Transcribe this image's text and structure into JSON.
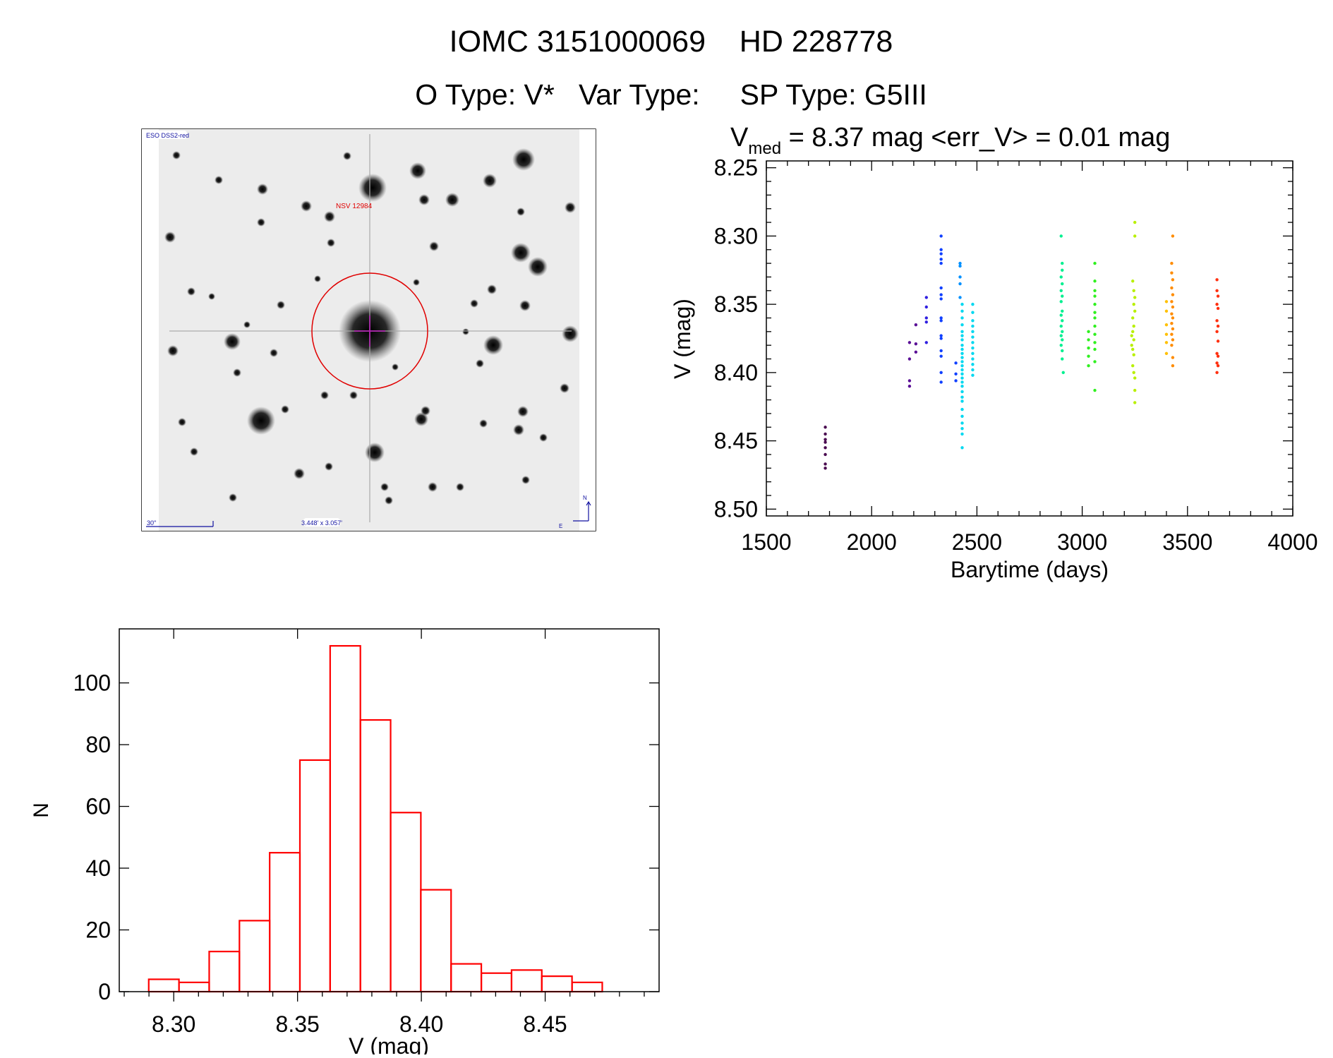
{
  "header": {
    "title": "IOMC 3151000069    HD 228778",
    "subtitle": "O Type: V*   Var Type:     SP Type: G5III"
  },
  "finder_image": {
    "survey_label": "ESO DSS2-red",
    "target_label": "NSV 12984",
    "scale_label": "30\"",
    "field_size_label": "3.448' x 3.057'",
    "north_label": "N",
    "east_label": "E",
    "colors": {
      "target": "#e00000",
      "labels": "#1010a0"
    }
  },
  "chart_data": [
    {
      "type": "scatter",
      "title_main": "V",
      "title_sub": "med",
      "title_rest": " = 8.37 mag <err_V> = 0.01 mag",
      "xlabel": "Barytime (days)",
      "ylabel": "V (mag)",
      "xlim": [
        1500,
        4000
      ],
      "ylim": [
        8.505,
        8.245
      ],
      "y_inverted": true,
      "xticks": [
        "1500",
        "2000",
        "2500",
        "3000",
        "3500",
        "4000"
      ],
      "yticks": [
        "8.25",
        "8.30",
        "8.35",
        "8.40",
        "8.45",
        "8.50"
      ],
      "grid": false,
      "series": [
        {
          "color": "#4a0a50",
          "points": [
            [
              1780,
              8.44
            ],
            [
              1780,
              8.445
            ],
            [
              1780,
              8.449
            ],
            [
              1780,
              8.451
            ],
            [
              1780,
              8.455
            ],
            [
              1780,
              8.46
            ],
            [
              1780,
              8.467
            ],
            [
              1780,
              8.47
            ]
          ]
        },
        {
          "color": "#5a1096",
          "points": [
            [
              2180,
              8.378
            ],
            [
              2180,
              8.39
            ],
            [
              2180,
              8.406
            ],
            [
              2180,
              8.41
            ],
            [
              2210,
              8.365
            ],
            [
              2210,
              8.379
            ],
            [
              2210,
              8.385
            ]
          ]
        },
        {
          "color": "#3020e0",
          "points": [
            [
              2260,
              8.345
            ],
            [
              2260,
              8.352
            ],
            [
              2260,
              8.36
            ],
            [
              2260,
              8.363
            ],
            [
              2260,
              8.378
            ]
          ]
        },
        {
          "color": "#1040ff",
          "points": [
            [
              2330,
              8.3
            ],
            [
              2330,
              8.31
            ],
            [
              2330,
              8.313
            ],
            [
              2330,
              8.317
            ],
            [
              2330,
              8.32
            ],
            [
              2330,
              8.338
            ],
            [
              2330,
              8.343
            ],
            [
              2330,
              8.346
            ],
            [
              2330,
              8.36
            ],
            [
              2330,
              8.362
            ],
            [
              2330,
              8.373
            ],
            [
              2330,
              8.375
            ],
            [
              2330,
              8.384
            ],
            [
              2330,
              8.388
            ],
            [
              2330,
              8.4
            ],
            [
              2330,
              8.407
            ],
            [
              2400,
              8.393
            ],
            [
              2400,
              8.401
            ],
            [
              2400,
              8.406
            ]
          ]
        },
        {
          "color": "#0090ff",
          "points": [
            [
              2420,
              8.32
            ],
            [
              2420,
              8.322
            ],
            [
              2420,
              8.33
            ],
            [
              2420,
              8.335
            ],
            [
              2420,
              8.345
            ]
          ]
        },
        {
          "color": "#00d8f0",
          "points": [
            [
              2430,
              8.35
            ],
            [
              2430,
              8.355
            ],
            [
              2430,
              8.36
            ],
            [
              2430,
              8.365
            ],
            [
              2430,
              8.37
            ],
            [
              2430,
              8.373
            ],
            [
              2430,
              8.376
            ],
            [
              2430,
              8.38
            ],
            [
              2430,
              8.383
            ],
            [
              2430,
              8.386
            ],
            [
              2430,
              8.389
            ],
            [
              2430,
              8.392
            ],
            [
              2430,
              8.395
            ],
            [
              2430,
              8.398
            ],
            [
              2430,
              8.401
            ],
            [
              2430,
              8.404
            ],
            [
              2430,
              8.407
            ],
            [
              2430,
              8.41
            ],
            [
              2430,
              8.414
            ],
            [
              2430,
              8.418
            ],
            [
              2430,
              8.421
            ],
            [
              2430,
              8.427
            ],
            [
              2430,
              8.432
            ],
            [
              2430,
              8.437
            ],
            [
              2430,
              8.441
            ],
            [
              2430,
              8.445
            ],
            [
              2430,
              8.455
            ],
            [
              2480,
              8.35
            ],
            [
              2480,
              8.356
            ],
            [
              2480,
              8.362
            ],
            [
              2480,
              8.366
            ],
            [
              2480,
              8.37
            ],
            [
              2480,
              8.374
            ],
            [
              2480,
              8.378
            ],
            [
              2480,
              8.382
            ],
            [
              2480,
              8.386
            ],
            [
              2480,
              8.39
            ],
            [
              2480,
              8.394
            ],
            [
              2480,
              8.398
            ],
            [
              2480,
              8.402
            ]
          ]
        },
        {
          "color": "#00f090",
          "points": [
            [
              2900,
              8.3
            ],
            [
              2905,
              8.32
            ],
            [
              2905,
              8.325
            ],
            [
              2900,
              8.33
            ],
            [
              2905,
              8.335
            ],
            [
              2900,
              8.34
            ],
            [
              2905,
              8.344
            ],
            [
              2900,
              8.348
            ],
            [
              2905,
              8.355
            ],
            [
              2900,
              8.358
            ],
            [
              2905,
              8.362
            ],
            [
              2900,
              8.366
            ],
            [
              2905,
              8.37
            ],
            [
              2900,
              8.373
            ],
            [
              2905,
              8.376
            ],
            [
              2900,
              8.38
            ],
            [
              2905,
              8.384
            ],
            [
              2905,
              8.39
            ],
            [
              2910,
              8.4
            ]
          ]
        },
        {
          "color": "#30f020",
          "points": [
            [
              3030,
              8.37
            ],
            [
              3030,
              8.376
            ],
            [
              3030,
              8.382
            ],
            [
              3030,
              8.388
            ],
            [
              3030,
              8.395
            ],
            [
              3060,
              8.32
            ],
            [
              3060,
              8.333
            ],
            [
              3060,
              8.34
            ],
            [
              3060,
              8.344
            ],
            [
              3060,
              8.35
            ],
            [
              3060,
              8.356
            ],
            [
              3060,
              8.36
            ],
            [
              3060,
              8.366
            ],
            [
              3060,
              8.372
            ],
            [
              3060,
              8.378
            ],
            [
              3060,
              8.383
            ],
            [
              3060,
              8.392
            ],
            [
              3060,
              8.413
            ]
          ]
        },
        {
          "color": "#b8f000",
          "points": [
            [
              3250,
              8.29
            ],
            [
              3250,
              8.3
            ],
            [
              3240,
              8.333
            ],
            [
              3245,
              8.34
            ],
            [
              3250,
              8.345
            ],
            [
              3245,
              8.35
            ],
            [
              3250,
              8.355
            ],
            [
              3240,
              8.36
            ],
            [
              3245,
              8.366
            ],
            [
              3240,
              8.37
            ],
            [
              3235,
              8.373
            ],
            [
              3245,
              8.376
            ],
            [
              3235,
              8.38
            ],
            [
              3240,
              8.383
            ],
            [
              3245,
              8.387
            ],
            [
              3240,
              8.395
            ],
            [
              3245,
              8.4
            ],
            [
              3250,
              8.404
            ],
            [
              3250,
              8.413
            ],
            [
              3250,
              8.422
            ]
          ]
        },
        {
          "color": "#ffc000",
          "points": [
            [
              3400,
              8.348
            ],
            [
              3400,
              8.355
            ],
            [
              3400,
              8.365
            ],
            [
              3400,
              8.372
            ],
            [
              3400,
              8.378
            ],
            [
              3400,
              8.386
            ]
          ]
        },
        {
          "color": "#ff8c00",
          "points": [
            [
              3430,
              8.3
            ],
            [
              3425,
              8.32
            ],
            [
              3425,
              8.327
            ],
            [
              3430,
              8.332
            ],
            [
              3425,
              8.338
            ],
            [
              3430,
              8.343
            ],
            [
              3425,
              8.348
            ],
            [
              3430,
              8.352
            ],
            [
              3425,
              8.357
            ],
            [
              3430,
              8.36
            ],
            [
              3425,
              8.364
            ],
            [
              3430,
              8.368
            ],
            [
              3425,
              8.372
            ],
            [
              3430,
              8.376
            ],
            [
              3425,
              8.38
            ],
            [
              3430,
              8.389
            ],
            [
              3430,
              8.395
            ]
          ]
        },
        {
          "color": "#ff3010",
          "points": [
            [
              3640,
              8.332
            ],
            [
              3640,
              8.34
            ],
            [
              3645,
              8.344
            ],
            [
              3640,
              8.35
            ],
            [
              3645,
              8.353
            ],
            [
              3640,
              8.362
            ],
            [
              3645,
              8.366
            ],
            [
              3640,
              8.37
            ],
            [
              3645,
              8.377
            ],
            [
              3640,
              8.386
            ],
            [
              3645,
              8.388
            ],
            [
              3640,
              8.393
            ],
            [
              3645,
              8.395
            ],
            [
              3640,
              8.4
            ]
          ]
        }
      ]
    },
    {
      "type": "bar",
      "histogram": true,
      "xlabel": "V (mag)",
      "ylabel": "N",
      "xlim": [
        8.278,
        8.496
      ],
      "ylim": [
        0,
        117.5
      ],
      "xticks": [
        "8.30",
        "8.35",
        "8.40",
        "8.45"
      ],
      "yticks": [
        "0",
        "20",
        "40",
        "60",
        "80",
        "100"
      ],
      "bin_start": 8.2899,
      "bin_width": 0.01221,
      "values": [
        4,
        3,
        13,
        23,
        45,
        75,
        112,
        88,
        58,
        33,
        9,
        6,
        7,
        5,
        3
      ],
      "bar_color": "#ff0000",
      "grid": false
    }
  ]
}
